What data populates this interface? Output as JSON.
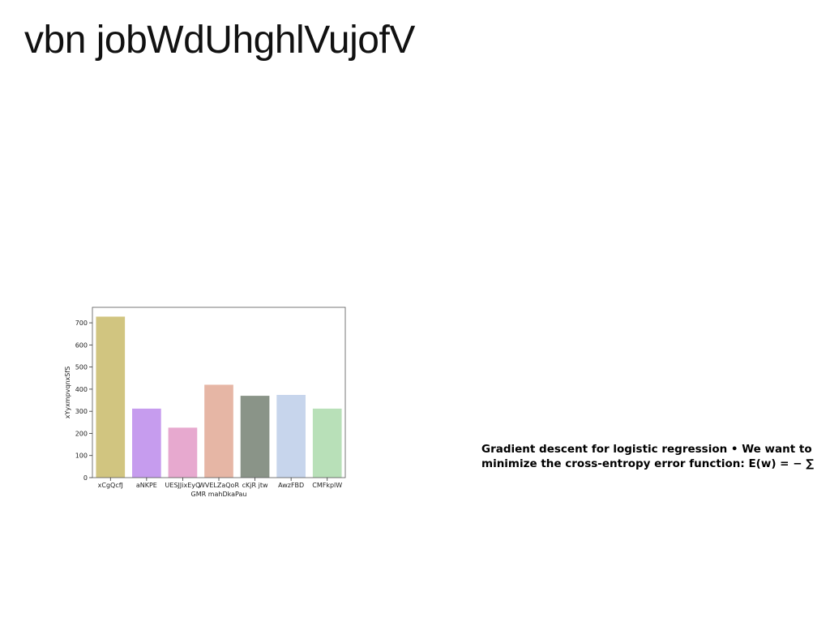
{
  "slide": {
    "title": "vbn jobWdUhghlVujofV"
  },
  "text_block": {
    "line1": "Gradient descent for logistic regression • We want to",
    "line2": "minimize the cross-entropy error function: E(w) = − ∑"
  },
  "chart_data": {
    "type": "bar",
    "categories": [
      "xCgQcfJ",
      "aNKPE",
      "UESJJixEyQ",
      "WVELZaQoR",
      "cKjR jtw",
      "AwzFBD",
      "CMFkplW"
    ],
    "values": [
      728,
      312,
      226,
      420,
      370,
      374,
      312
    ],
    "colors": [
      "#d1c580",
      "#c69cee",
      "#e7a9cf",
      "#e6b6a5",
      "#8a9488",
      "#c7d5ec",
      "#b8e0b8"
    ],
    "xlabel": "GMR mahDkaPau",
    "ylabel": "xYyxmpvqnxSfS",
    "ylim": [
      0,
      770
    ],
    "yticks": [
      0,
      100,
      200,
      300,
      400,
      500,
      600,
      700
    ],
    "grid": false,
    "legend": "none"
  }
}
